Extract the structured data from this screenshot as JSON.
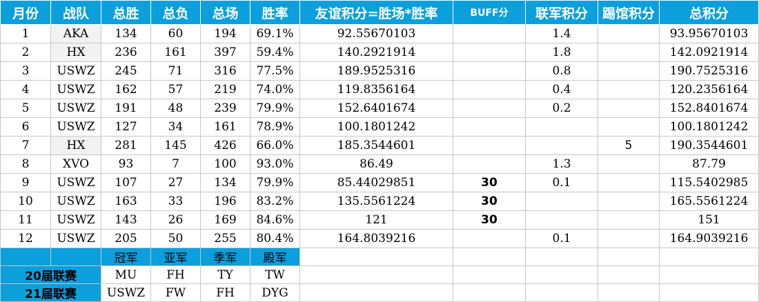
{
  "headers": [
    "月份",
    "战队",
    "总胜",
    "总负",
    "总场",
    "胜率",
    "友谊积分=胜场*胜率",
    "BUFF分",
    "联军积分",
    "踢馆积分",
    "总积分"
  ],
  "rows": [
    {
      "month": "1",
      "team": "AKA",
      "wins": "134",
      "losses": "60",
      "games": "194",
      "rate": "69.1%",
      "friend": "92.55670103",
      "buff": "",
      "allied": "1.4",
      "kick": "",
      "total": "93.95670103"
    },
    {
      "month": "2",
      "team": "HX",
      "wins": "236",
      "losses": "161",
      "games": "397",
      "rate": "59.4%",
      "friend": "140.2921914",
      "buff": "",
      "allied": "1.8",
      "kick": "",
      "total": "142.0921914"
    },
    {
      "month": "3",
      "team": "USWZ",
      "wins": "245",
      "losses": "71",
      "games": "316",
      "rate": "77.5%",
      "friend": "189.9525316",
      "buff": "",
      "allied": "0.8",
      "kick": "",
      "total": "190.7525316"
    },
    {
      "month": "4",
      "team": "USWZ",
      "wins": "162",
      "losses": "57",
      "games": "219",
      "rate": "74.0%",
      "friend": "119.8356164",
      "buff": "",
      "allied": "0.4",
      "kick": "",
      "total": "120.2356164"
    },
    {
      "month": "5",
      "team": "USWZ",
      "wins": "191",
      "losses": "48",
      "games": "239",
      "rate": "79.9%",
      "friend": "152.6401674",
      "buff": "",
      "allied": "0.2",
      "kick": "",
      "total": "152.8401674"
    },
    {
      "month": "6",
      "team": "USWZ",
      "wins": "127",
      "losses": "34",
      "games": "161",
      "rate": "78.9%",
      "friend": "100.1801242",
      "buff": "",
      "allied": "",
      "kick": "",
      "total": "100.1801242"
    },
    {
      "month": "7",
      "team": "HX",
      "wins": "281",
      "losses": "145",
      "games": "426",
      "rate": "66.0%",
      "friend": "185.3544601",
      "buff": "",
      "allied": "",
      "kick": "5",
      "total": "190.3544601"
    },
    {
      "month": "8",
      "team": "XVO",
      "wins": "93",
      "losses": "7",
      "games": "100",
      "rate": "93.0%",
      "friend": "86.49",
      "buff": "",
      "allied": "1.3",
      "kick": "",
      "total": "87.79"
    },
    {
      "month": "9",
      "team": "USWZ",
      "wins": "107",
      "losses": "27",
      "games": "134",
      "rate": "79.9%",
      "friend": "85.44029851",
      "buff": "30",
      "allied": "0.1",
      "kick": "",
      "total": "115.5402985"
    },
    {
      "month": "10",
      "team": "USWZ",
      "wins": "163",
      "losses": "33",
      "games": "196",
      "rate": "83.2%",
      "friend": "135.5561224",
      "buff": "30",
      "allied": "",
      "kick": "",
      "total": "165.5561224"
    },
    {
      "month": "11",
      "team": "USWZ",
      "wins": "143",
      "losses": "26",
      "games": "169",
      "rate": "84.6%",
      "friend": "121",
      "buff": "30",
      "allied": "",
      "kick": "",
      "total": "151"
    },
    {
      "month": "12",
      "team": "USWZ",
      "wins": "205",
      "losses": "50",
      "games": "255",
      "rate": "80.4%",
      "friend": "164.8039216",
      "buff": "",
      "allied": "0.1",
      "kick": "",
      "total": "164.9039216"
    }
  ],
  "honors": {
    "medals": [
      "冠军",
      "亚军",
      "季军",
      "殿军"
    ],
    "leagues": [
      {
        "name": "20届联赛",
        "results": [
          "MU",
          "FH",
          "TY",
          "TW"
        ]
      },
      {
        "name": "21届联赛",
        "results": [
          "USWZ",
          "FW",
          "FH",
          "DYG"
        ]
      }
    ]
  },
  "colors": {
    "header_bg": "#0b9fdc",
    "header_text": "#ffffff",
    "allied_text": "#1a9fdc",
    "buff_text": "#1a9b2a",
    "kick_text": "#6a2aa6",
    "shade": "#f2f2f2"
  }
}
